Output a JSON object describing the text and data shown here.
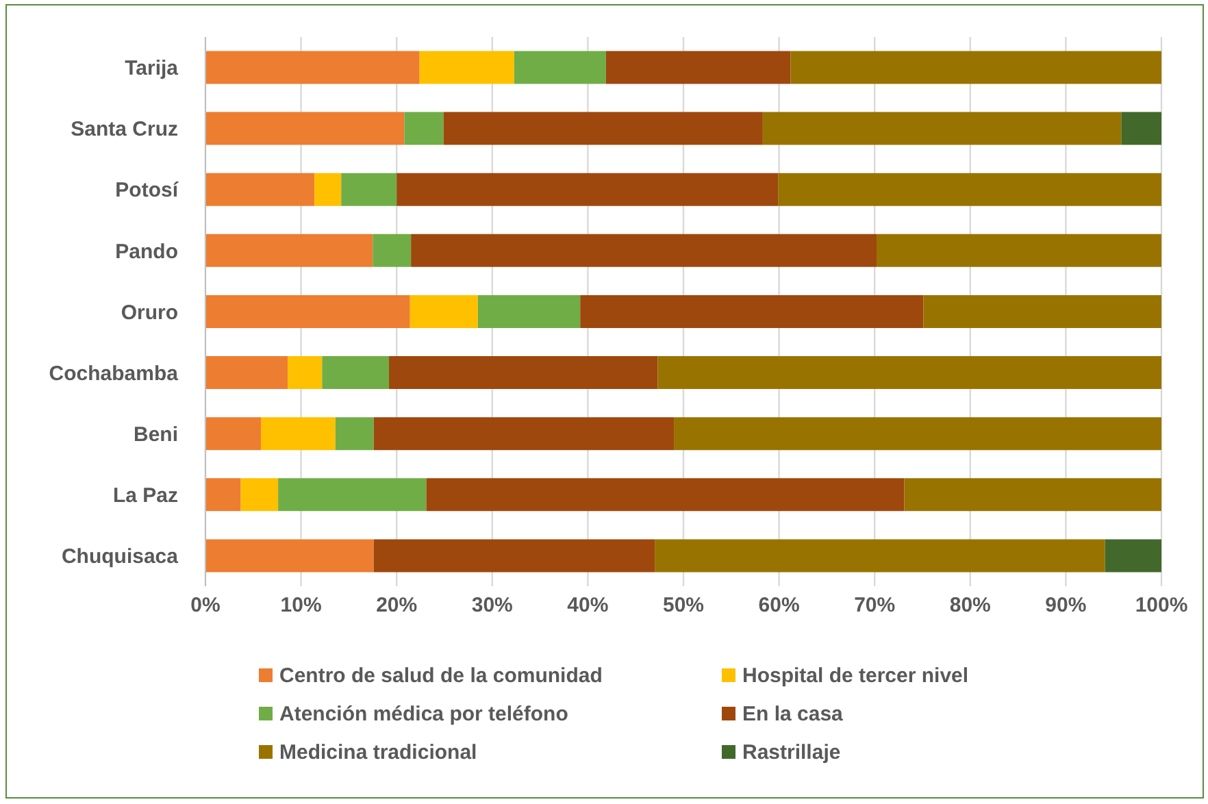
{
  "chart_data": {
    "type": "bar",
    "orientation": "horizontal",
    "stacked": true,
    "categories": [
      "Tarija",
      "Santa Cruz",
      "Potosí",
      "Pando",
      "Oruro",
      "Cochabamba",
      "Beni",
      "La Paz",
      "Chuquisaca"
    ],
    "series": [
      {
        "name": "Centro de salud de la comunidad",
        "color": "#ed7d31",
        "values": [
          22.4,
          20.8,
          11.4,
          17.5,
          21.4,
          8.6,
          5.8,
          3.7,
          17.6
        ]
      },
      {
        "name": "Hospital de tercer nivel",
        "color": "#ffc000",
        "values": [
          9.9,
          0,
          2.8,
          0,
          7.1,
          3.6,
          7.8,
          3.9,
          0
        ]
      },
      {
        "name": "Atención médica por teléfono",
        "color": "#70ad47",
        "values": [
          9.6,
          4.1,
          5.8,
          4.0,
          10.7,
          7.0,
          4.0,
          15.5,
          0
        ]
      },
      {
        "name": "En la casa",
        "color": "#9e480e",
        "values": [
          19.3,
          33.4,
          39.9,
          48.7,
          35.9,
          28.1,
          31.4,
          50.0,
          29.4
        ]
      },
      {
        "name": "Medicina tradicional",
        "color": "#997300",
        "values": [
          38.8,
          37.5,
          40.1,
          29.8,
          24.9,
          52.7,
          51.0,
          26.9,
          47.1
        ]
      },
      {
        "name": "Rastrillaje",
        "color": "#43682b",
        "values": [
          0,
          4.2,
          0,
          0,
          0,
          0,
          0,
          0,
          5.9
        ]
      }
    ],
    "xlim": [
      0,
      100
    ],
    "xticks": [
      {
        "value": 0,
        "label": "0%"
      },
      {
        "value": 10,
        "label": "10%"
      },
      {
        "value": 20,
        "label": "20%"
      },
      {
        "value": 30,
        "label": "30%"
      },
      {
        "value": 40,
        "label": "40%"
      },
      {
        "value": 50,
        "label": "50%"
      },
      {
        "value": 60,
        "label": "60%"
      },
      {
        "value": 70,
        "label": "70%"
      },
      {
        "value": 80,
        "label": "80%"
      },
      {
        "value": 90,
        "label": "90%"
      },
      {
        "value": 100,
        "label": "100%"
      }
    ],
    "grid": "x",
    "legend": "bottom"
  }
}
